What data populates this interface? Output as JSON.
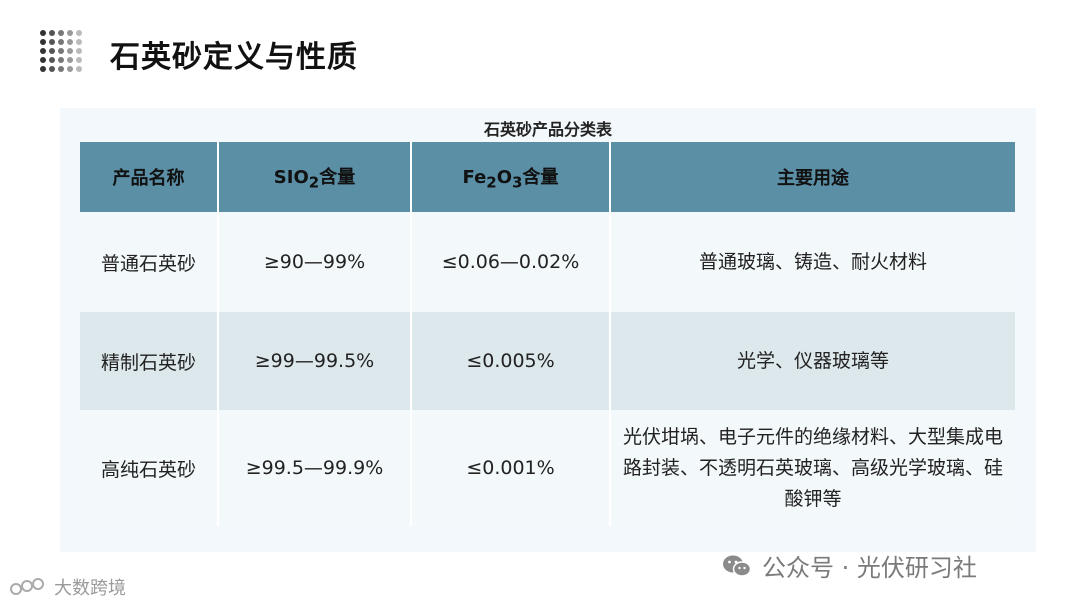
{
  "page": {
    "title": "石英砂定义与性质",
    "dot_colors": [
      "#333333",
      "#555555",
      "#777777",
      "#999999",
      "#bbbbbb"
    ]
  },
  "table": {
    "caption": "石英砂产品分类表",
    "headers": {
      "name": "产品名称",
      "sio2_main": "SIO",
      "sio2_sub": "2",
      "sio2_tail": "含量",
      "fe_main": "Fe",
      "fe_sub1": "2",
      "fe_mid": "O",
      "fe_sub2": "3",
      "fe_tail": "含量",
      "use": "主要用途"
    },
    "rows": [
      {
        "name": "普通石英砂",
        "sio2": "≥90—99%",
        "fe": "≤0.06—0.02%",
        "use": "普通玻璃、铸造、耐火材料"
      },
      {
        "name": "精制石英砂",
        "sio2": "≥99—99.5%",
        "fe": "≤0.005%",
        "use": "光学、仪器玻璃等"
      },
      {
        "name": "高纯石英砂",
        "sio2": "≥99.5—99.9%",
        "fe": "≤0.001%",
        "use": "光伏坩埚、电子元件的绝缘材料、大型集成电路封装、不透明石英玻璃、高级光学玻璃、硅酸钾等"
      }
    ],
    "colors": {
      "header": "#5a8fa6",
      "stripe": "#dde8ed"
    }
  },
  "footer": {
    "left_text": "大数跨境",
    "right_text": "公众号 · 光伏研习社"
  }
}
